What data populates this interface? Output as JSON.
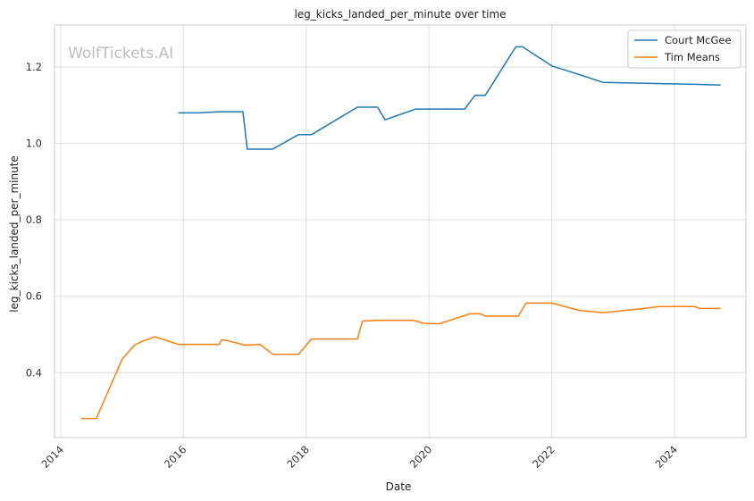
{
  "chart_data": {
    "type": "line",
    "title": "leg_kicks_landed_per_minute over time",
    "xlabel": "Date",
    "ylabel": "leg_kicks_landed_per_minute",
    "watermark": "WolfTickets.AI",
    "x_ticks": [
      "2014",
      "2016",
      "2018",
      "2020",
      "2022",
      "2024"
    ],
    "y_ticks": [
      "0.4",
      "0.6",
      "0.8",
      "1.0",
      "1.2"
    ],
    "xlim": [
      "2013-11-25",
      "2025-03-01"
    ],
    "ylim": [
      0.23,
      1.31
    ],
    "grid": true,
    "legend_position": "top-right",
    "series": [
      {
        "name": "Court McGee",
        "color": "#1f77b4",
        "points": [
          [
            "2015-12-01",
            1.08
          ],
          [
            "2016-04-01",
            1.08
          ],
          [
            "2016-08-01",
            1.083
          ],
          [
            "2016-12-20",
            1.083
          ],
          [
            "2017-01-15",
            0.985
          ],
          [
            "2017-06-15",
            0.985
          ],
          [
            "2017-11-15",
            1.023
          ],
          [
            "2018-02-01",
            1.023
          ],
          [
            "2018-11-01",
            1.095
          ],
          [
            "2019-03-01",
            1.095
          ],
          [
            "2019-04-15",
            1.062
          ],
          [
            "2019-10-15",
            1.09
          ],
          [
            "2020-08-01",
            1.09
          ],
          [
            "2020-10-01",
            1.126
          ],
          [
            "2020-12-01",
            1.126
          ],
          [
            "2021-06-01",
            1.253
          ],
          [
            "2021-07-10",
            1.253
          ],
          [
            "2022-01-01",
            1.203
          ],
          [
            "2022-06-15",
            1.18
          ],
          [
            "2022-11-01",
            1.16
          ],
          [
            "2024-04-01",
            1.155
          ],
          [
            "2024-10-01",
            1.153
          ]
        ]
      },
      {
        "name": "Tim Means",
        "color": "#ff7f0e",
        "points": [
          [
            "2014-05-01",
            0.28
          ],
          [
            "2014-08-01",
            0.28
          ],
          [
            "2015-01-01",
            0.435
          ],
          [
            "2015-03-15",
            0.472
          ],
          [
            "2015-05-01",
            0.482
          ],
          [
            "2015-07-15",
            0.494
          ],
          [
            "2015-12-01",
            0.474
          ],
          [
            "2016-08-01",
            0.474
          ],
          [
            "2016-08-15",
            0.486
          ],
          [
            "2016-09-15",
            0.484
          ],
          [
            "2017-01-01",
            0.472
          ],
          [
            "2017-04-01",
            0.474
          ],
          [
            "2017-06-15",
            0.448
          ],
          [
            "2017-11-15",
            0.448
          ],
          [
            "2018-02-01",
            0.488
          ],
          [
            "2018-11-01",
            0.488
          ],
          [
            "2018-12-01",
            0.535
          ],
          [
            "2019-03-01",
            0.537
          ],
          [
            "2019-10-01",
            0.537
          ],
          [
            "2019-12-01",
            0.529
          ],
          [
            "2020-03-01",
            0.528
          ],
          [
            "2020-09-01",
            0.554
          ],
          [
            "2020-11-01",
            0.554
          ],
          [
            "2020-12-01",
            0.548
          ],
          [
            "2021-06-15",
            0.548
          ],
          [
            "2021-08-01",
            0.582
          ],
          [
            "2022-01-01",
            0.582
          ],
          [
            "2022-06-15",
            0.563
          ],
          [
            "2022-11-01",
            0.557
          ],
          [
            "2023-06-15",
            0.567
          ],
          [
            "2023-10-01",
            0.573
          ],
          [
            "2024-05-01",
            0.573
          ],
          [
            "2024-06-01",
            0.568
          ],
          [
            "2024-10-01",
            0.568
          ]
        ]
      }
    ]
  }
}
